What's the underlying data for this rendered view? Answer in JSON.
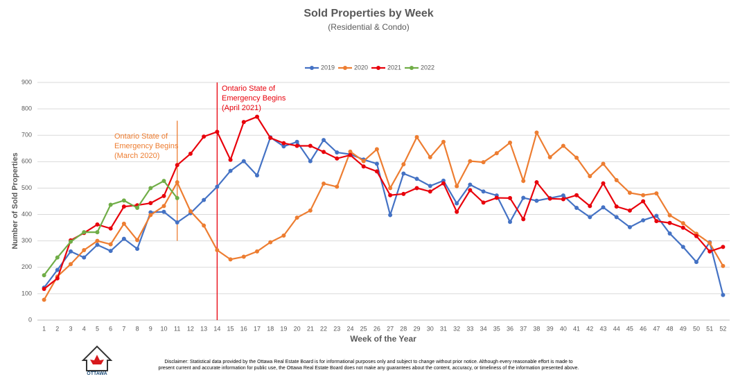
{
  "chart_data": {
    "type": "line",
    "title": "Sold Properties by Week",
    "subtitle": "(Residential & Condo)",
    "x_label": "Week of the Year",
    "y_label": "Number of Sold Properties",
    "categories": [
      "1",
      "2",
      "3",
      "4",
      "5",
      "6",
      "7",
      "8",
      "9",
      "10",
      "11",
      "12",
      "13",
      "14",
      "15",
      "16",
      "17",
      "18",
      "19",
      "20",
      "21",
      "22",
      "23",
      "24",
      "25",
      "26",
      "27",
      "28",
      "29",
      "30",
      "31",
      "32",
      "33",
      "34",
      "35",
      "36",
      "37",
      "38",
      "39",
      "40",
      "41",
      "42",
      "43",
      "44",
      "45",
      "46",
      "47",
      "48",
      "49",
      "50",
      "51",
      "52"
    ],
    "series": [
      {
        "name": "2019",
        "color": "#4472c4",
        "values": [
          123,
          190,
          260,
          237,
          285,
          262,
          308,
          270,
          408,
          410,
          370,
          405,
          455,
          505,
          565,
          602,
          548,
          692,
          658,
          675,
          602,
          682,
          635,
          628,
          608,
          592,
          398,
          555,
          535,
          508,
          528,
          442,
          513,
          487,
          472,
          372,
          463,
          452,
          462,
          472,
          425,
          390,
          427,
          390,
          352,
          378,
          395,
          328,
          277,
          220,
          295,
          95
        ]
      },
      {
        "name": "2020",
        "color": "#ed7d31",
        "values": [
          77,
          165,
          212,
          265,
          300,
          287,
          365,
          303,
          398,
          432,
          522,
          412,
          358,
          265,
          230,
          240,
          260,
          295,
          320,
          388,
          415,
          517,
          505,
          638,
          602,
          647,
          500,
          590,
          693,
          617,
          675,
          507,
          602,
          598,
          632,
          672,
          527,
          710,
          617,
          660,
          615,
          545,
          592,
          530,
          482,
          473,
          480,
          397,
          367,
          327,
          292,
          205
        ]
      },
      {
        "name": "2021",
        "color": "#e8000b",
        "values": [
          118,
          158,
          302,
          330,
          362,
          347,
          430,
          435,
          443,
          470,
          587,
          630,
          695,
          713,
          607,
          750,
          770,
          690,
          670,
          660,
          660,
          637,
          612,
          625,
          582,
          563,
          473,
          478,
          500,
          487,
          518,
          410,
          492,
          445,
          463,
          462,
          382,
          522,
          460,
          458,
          473,
          432,
          518,
          430,
          415,
          450,
          375,
          368,
          350,
          318,
          260,
          277
        ]
      },
      {
        "name": "2022",
        "color": "#70ad47",
        "values": [
          170,
          237,
          297,
          333,
          333,
          437,
          453,
          425,
          500,
          527,
          462,
          null,
          null,
          null,
          null,
          null,
          null,
          null,
          null,
          null,
          null,
          null,
          null,
          null,
          null,
          null,
          null,
          null,
          null,
          null,
          null,
          null,
          null,
          null,
          null,
          null,
          null,
          null,
          null,
          null,
          null,
          null,
          null,
          null,
          null,
          null,
          null,
          null,
          null,
          null,
          null,
          null
        ]
      }
    ],
    "ylim": [
      0,
      900
    ],
    "yticks": [
      0,
      100,
      200,
      300,
      400,
      500,
      600,
      700,
      800,
      900
    ],
    "grid": true,
    "legend": "top",
    "annotations": [
      {
        "lines": [
          "Ontario State of",
          "Emergency Begins",
          "(March 2020)"
        ],
        "color": "#ed7d31",
        "category": "11",
        "span": [
          300,
          755
        ]
      },
      {
        "lines": [
          "Ontario State of",
          "Emergency Begins",
          "(April 2021)"
        ],
        "color": "#e8000b",
        "category": "14",
        "span": [
          0,
          900
        ]
      }
    ],
    "logo": "OTTAWA",
    "disclaimer": [
      "Disclaimer: Statistical data provided by the Ottawa Real Estate Board is for informational purposes only and subject to change without prior notice. Although every reasonable effort is made to",
      "present current and accurate information for public use, the Ottawa Real Estate Board does not make any guarantees about the content, accuracy, or timeliness of the information presented above."
    ]
  }
}
